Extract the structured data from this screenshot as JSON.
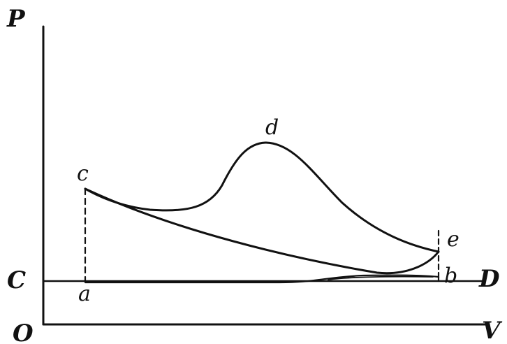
{
  "diagram": {
    "labels": {
      "pressure_axis": "P",
      "volume_axis": "V",
      "origin": "O",
      "line_start": "C",
      "line_end": "D",
      "point_a": "a",
      "point_b": "b",
      "point_c": "c",
      "point_d": "d",
      "point_e": "e"
    },
    "colors": {
      "ink": "#111111",
      "background": "#ffffff"
    }
  }
}
